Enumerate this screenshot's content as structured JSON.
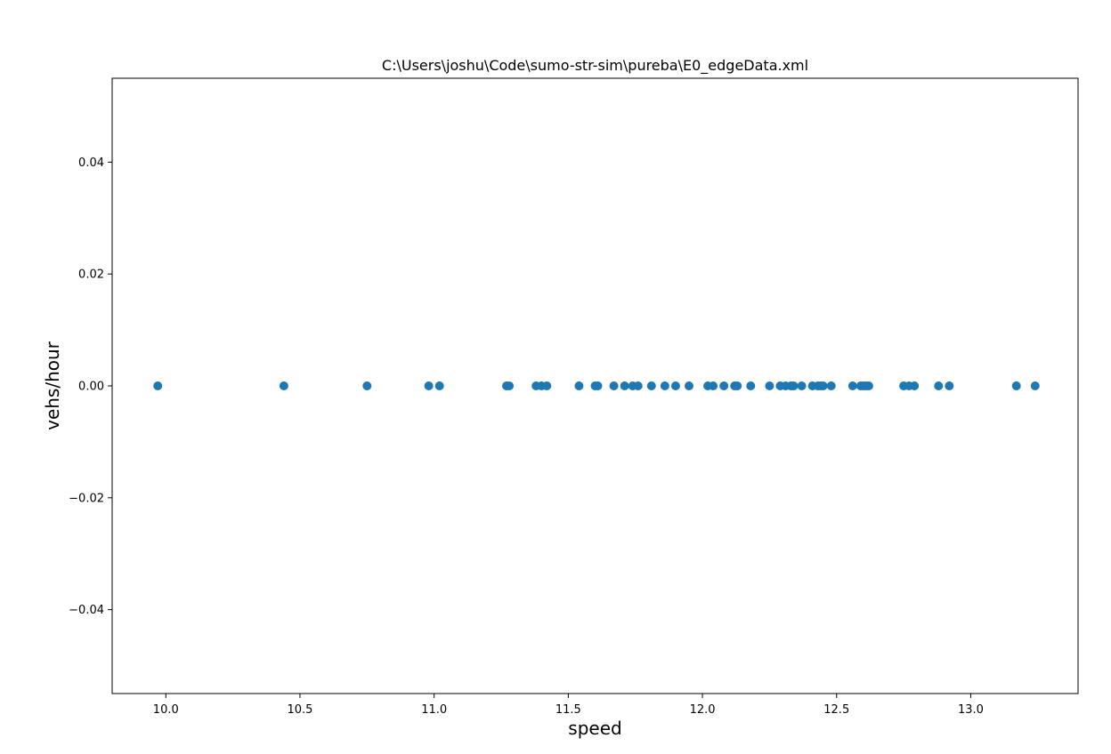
{
  "chart_data": {
    "type": "scatter",
    "title": "C:\\Users\\joshu\\Code\\sumo-str-sim\\pureba\\E0_edgeData.xml",
    "xlabel": "speed",
    "ylabel": "vehs/hour",
    "xlim": [
      9.8,
      13.4
    ],
    "ylim": [
      -0.055,
      0.055
    ],
    "x_ticks": [
      {
        "value": 10.0,
        "label": "10.0"
      },
      {
        "value": 10.5,
        "label": "10.5"
      },
      {
        "value": 11.0,
        "label": "11.0"
      },
      {
        "value": 11.5,
        "label": "11.5"
      },
      {
        "value": 12.0,
        "label": "12.0"
      },
      {
        "value": 12.5,
        "label": "12.5"
      },
      {
        "value": 13.0,
        "label": "13.0"
      }
    ],
    "y_ticks": [
      {
        "value": 0.04,
        "label": "0.04"
      },
      {
        "value": 0.02,
        "label": "0.02"
      },
      {
        "value": 0.0,
        "label": "0.00"
      },
      {
        "value": -0.02,
        "label": "−0.02"
      },
      {
        "value": -0.04,
        "label": "−0.04"
      }
    ],
    "grid": false,
    "marker_color": "#1f77b4",
    "series": [
      {
        "x": [
          9.97,
          10.44,
          10.75,
          10.98,
          11.02,
          11.27,
          11.28,
          11.38,
          11.4,
          11.42,
          11.54,
          11.6,
          11.61,
          11.67,
          11.71,
          11.74,
          11.76,
          11.81,
          11.86,
          11.9,
          11.95,
          12.02,
          12.04,
          12.08,
          12.12,
          12.13,
          12.18,
          12.25,
          12.29,
          12.31,
          12.33,
          12.34,
          12.37,
          12.41,
          12.43,
          12.44,
          12.45,
          12.48,
          12.56,
          12.59,
          12.6,
          12.61,
          12.62,
          12.75,
          12.77,
          12.79,
          12.88,
          12.92,
          13.17,
          13.24
        ],
        "y": [
          0,
          0,
          0,
          0,
          0,
          0,
          0,
          0,
          0,
          0,
          0,
          0,
          0,
          0,
          0,
          0,
          0,
          0,
          0,
          0,
          0,
          0,
          0,
          0,
          0,
          0,
          0,
          0,
          0,
          0,
          0,
          0,
          0,
          0,
          0,
          0,
          0,
          0,
          0,
          0,
          0,
          0,
          0,
          0,
          0,
          0,
          0,
          0,
          0,
          0
        ]
      }
    ]
  }
}
